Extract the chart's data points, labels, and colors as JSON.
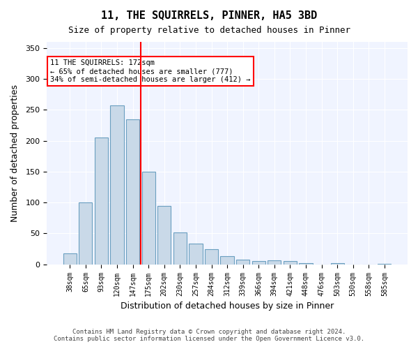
{
  "title": "11, THE SQUIRRELS, PINNER, HA5 3BD",
  "subtitle": "Size of property relative to detached houses in Pinner",
  "xlabel": "Distribution of detached houses by size in Pinner",
  "ylabel": "Number of detached properties",
  "bar_color": "#c9d9e8",
  "bar_edge_color": "#6a9fc0",
  "background_color": "#f0f4ff",
  "categories": [
    "38sqm",
    "65sqm",
    "93sqm",
    "120sqm",
    "147sqm",
    "175sqm",
    "202sqm",
    "230sqm",
    "257sqm",
    "284sqm",
    "312sqm",
    "339sqm",
    "366sqm",
    "394sqm",
    "421sqm",
    "448sqm",
    "476sqm",
    "503sqm",
    "530sqm",
    "558sqm",
    "585sqm"
  ],
  "values": [
    18,
    100,
    205,
    257,
    235,
    150,
    95,
    52,
    33,
    25,
    13,
    8,
    5,
    6,
    5,
    2,
    0,
    2,
    0,
    0,
    1
  ],
  "property_line_x": 4.5,
  "annotation_text": "11 THE SQUIRRELS: 172sqm\n← 65% of detached houses are smaller (777)\n34% of semi-detached houses are larger (412) →",
  "annotation_box_color": "white",
  "annotation_box_edge_color": "red",
  "vline_color": "red",
  "ylim": [
    0,
    360
  ],
  "yticks": [
    0,
    50,
    100,
    150,
    200,
    250,
    300,
    350
  ],
  "footer_line1": "Contains HM Land Registry data © Crown copyright and database right 2024.",
  "footer_line2": "Contains public sector information licensed under the Open Government Licence v3.0."
}
